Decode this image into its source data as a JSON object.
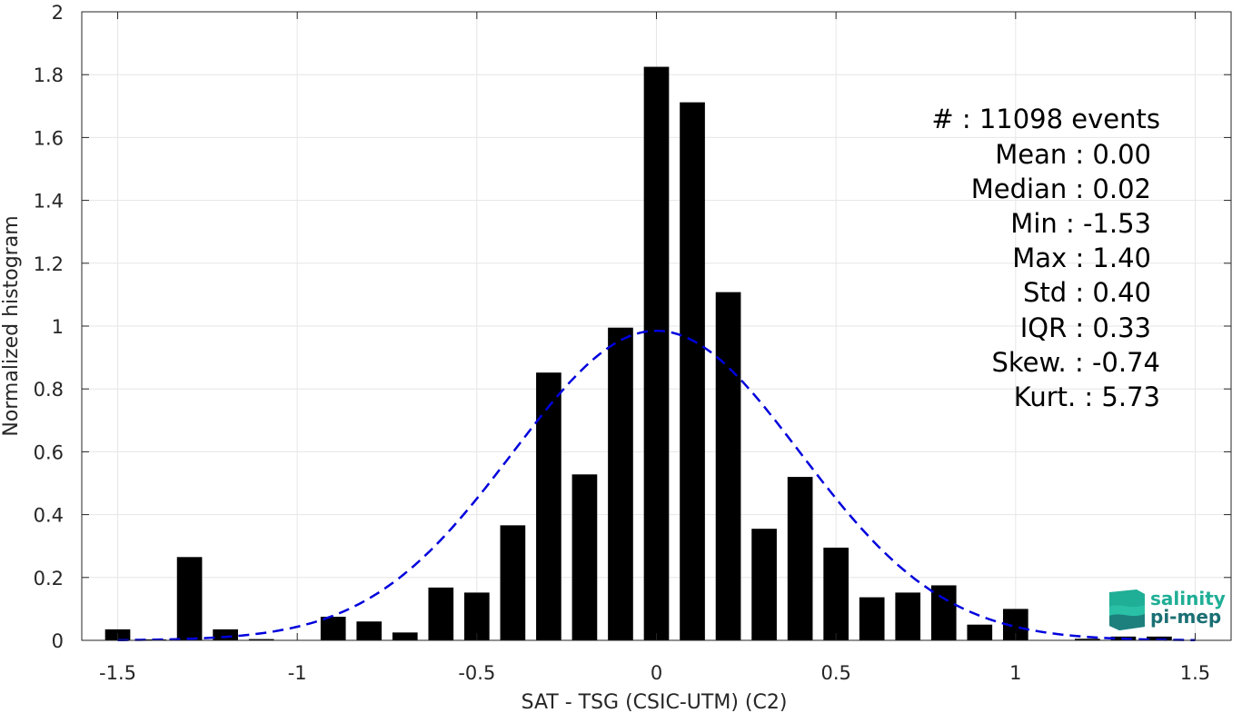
{
  "chart_data": {
    "type": "bar",
    "title": "",
    "xlabel": "SAT - TSG (CSIC-UTM) (C2)",
    "ylabel": "Normalized histogram",
    "xlim": [
      -1.6,
      1.6
    ],
    "ylim": [
      0,
      2
    ],
    "xticks": [
      -1.5,
      -1,
      -0.5,
      0,
      0.5,
      1,
      1.5
    ],
    "xtick_labels": [
      "-1.5",
      "-1",
      "-0.5",
      "0",
      "0.5",
      "1",
      "1.5"
    ],
    "yticks": [
      0,
      0.2,
      0.4,
      0.6,
      0.8,
      1,
      1.2,
      1.4,
      1.6,
      1.8,
      2
    ],
    "ytick_labels": [
      "0",
      "0.2",
      "0.4",
      "0.6",
      "0.8",
      "1",
      "1.2",
      "1.4",
      "1.6",
      "1.8",
      "2"
    ],
    "grid": true,
    "bar_width": 0.07,
    "bins": [
      {
        "x": -1.5,
        "y": 0.035
      },
      {
        "x": -1.4,
        "y": 0.003
      },
      {
        "x": -1.3,
        "y": 0.265
      },
      {
        "x": -1.2,
        "y": 0.035
      },
      {
        "x": -1.1,
        "y": 0.004
      },
      {
        "x": -1.0,
        "y": 0.0
      },
      {
        "x": -0.9,
        "y": 0.075
      },
      {
        "x": -0.8,
        "y": 0.06
      },
      {
        "x": -0.7,
        "y": 0.025
      },
      {
        "x": -0.6,
        "y": 0.168
      },
      {
        "x": -0.5,
        "y": 0.152
      },
      {
        "x": -0.4,
        "y": 0.366
      },
      {
        "x": -0.3,
        "y": 0.852
      },
      {
        "x": -0.2,
        "y": 0.528
      },
      {
        "x": -0.1,
        "y": 0.995
      },
      {
        "x": 0.0,
        "y": 1.825
      },
      {
        "x": 0.1,
        "y": 1.712
      },
      {
        "x": 0.2,
        "y": 1.108
      },
      {
        "x": 0.3,
        "y": 0.355
      },
      {
        "x": 0.4,
        "y": 0.52
      },
      {
        "x": 0.5,
        "y": 0.295
      },
      {
        "x": 0.6,
        "y": 0.137
      },
      {
        "x": 0.7,
        "y": 0.152
      },
      {
        "x": 0.8,
        "y": 0.175
      },
      {
        "x": 0.9,
        "y": 0.05
      },
      {
        "x": 1.0,
        "y": 0.1
      },
      {
        "x": 1.1,
        "y": 0.0
      },
      {
        "x": 1.2,
        "y": 0.005
      },
      {
        "x": 1.3,
        "y": 0.012
      },
      {
        "x": 1.4,
        "y": 0.012
      }
    ],
    "fit_curve": {
      "type": "gaussian",
      "mean": 0.0,
      "std": 0.4,
      "peak": 0.985,
      "x_range": [
        -1.5,
        1.5
      ],
      "color": "#0000dd",
      "style": "dashed"
    },
    "bar_color": "#000000",
    "annotations": [
      {
        "text": "#  : 11098 events"
      },
      {
        "text": "Mean : 0.00"
      },
      {
        "text": "Median : 0.02"
      },
      {
        "text": "Min : -1.53"
      },
      {
        "text": "Max : 1.40"
      },
      {
        "text": "Std : 0.40"
      },
      {
        "text": "IQR : 0.33"
      },
      {
        "text": "Skew. : -0.74"
      },
      {
        "text": "Kurt. : 5.73"
      }
    ]
  },
  "logo": {
    "line1": "salinity",
    "line2": "pi-mep",
    "color_top": "#1fae96",
    "color_bottom": "#1a6f73"
  }
}
